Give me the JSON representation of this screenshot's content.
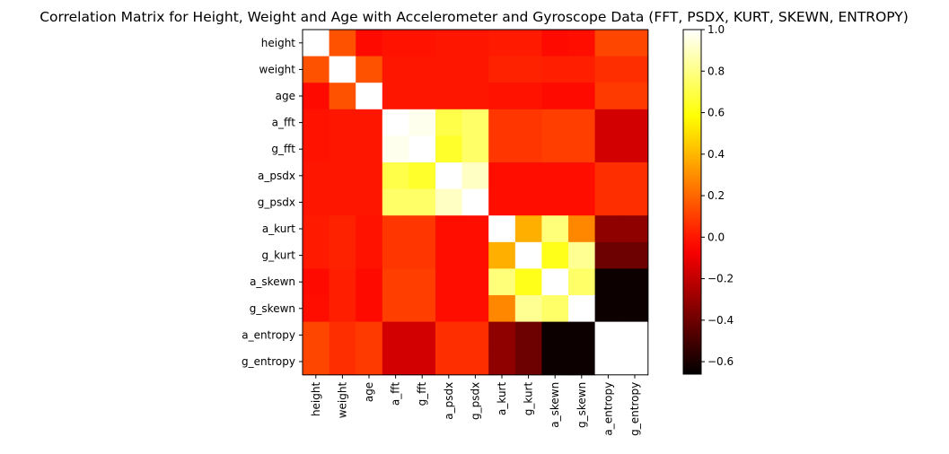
{
  "chart_data": {
    "type": "heatmap",
    "title": "Correlation Matrix for Height, Weight and Age with Accelerometer and Gyroscope Data (FFT, PSDX, KURT, SKEWN, ENTROPY)",
    "xlabel": "",
    "ylabel": "",
    "labels": [
      "height",
      "weight",
      "age",
      "a_fft",
      "g_fft",
      "a_psdx",
      "g_psdx",
      "a_kurt",
      "g_kurt",
      "a_skewn",
      "g_skewn",
      "a_entropy",
      "g_entropy"
    ],
    "values": [
      [
        1.0,
        0.15,
        -0.03,
        -0.01,
        -0.01,
        0.0,
        0.0,
        0.01,
        0.01,
        -0.03,
        -0.02,
        0.12,
        0.12
      ],
      [
        0.15,
        1.0,
        0.15,
        0.0,
        0.0,
        0.0,
        0.0,
        0.03,
        0.03,
        0.02,
        0.02,
        0.06,
        0.06
      ],
      [
        -0.03,
        0.15,
        1.0,
        0.0,
        0.0,
        0.0,
        0.0,
        -0.01,
        -0.01,
        -0.03,
        -0.03,
        0.09,
        0.09
      ],
      [
        -0.01,
        0.0,
        0.0,
        1.0,
        0.97,
        0.7,
        0.75,
        0.08,
        0.08,
        0.1,
        0.1,
        -0.16,
        -0.16
      ],
      [
        -0.01,
        0.0,
        0.0,
        0.97,
        1.0,
        0.65,
        0.75,
        0.08,
        0.08,
        0.1,
        0.1,
        -0.16,
        -0.16
      ],
      [
        0.0,
        0.0,
        0.0,
        0.7,
        0.65,
        1.0,
        0.9,
        -0.02,
        -0.02,
        -0.02,
        -0.02,
        0.06,
        0.06
      ],
      [
        0.0,
        0.0,
        0.0,
        0.75,
        0.75,
        0.9,
        1.0,
        -0.02,
        -0.02,
        -0.02,
        -0.02,
        0.06,
        0.06
      ],
      [
        0.01,
        0.03,
        -0.01,
        0.08,
        0.08,
        -0.02,
        -0.02,
        1.0,
        0.38,
        0.78,
        0.28,
        -0.32,
        -0.32
      ],
      [
        0.01,
        0.03,
        -0.01,
        0.08,
        0.08,
        -0.02,
        -0.02,
        0.38,
        1.0,
        0.62,
        0.82,
        -0.4,
        -0.4
      ],
      [
        -0.03,
        0.02,
        -0.03,
        0.1,
        0.1,
        -0.02,
        -0.02,
        0.78,
        0.62,
        1.0,
        0.75,
        -0.63,
        -0.63
      ],
      [
        -0.02,
        0.02,
        -0.03,
        0.1,
        0.1,
        -0.02,
        -0.02,
        0.28,
        0.82,
        0.75,
        1.0,
        -0.63,
        -0.63
      ],
      [
        0.12,
        0.06,
        0.09,
        -0.16,
        -0.16,
        0.06,
        0.06,
        -0.32,
        -0.4,
        -0.63,
        -0.63,
        1.0,
        1.0
      ],
      [
        0.12,
        0.06,
        0.09,
        -0.16,
        -0.16,
        0.06,
        0.06,
        -0.32,
        -0.4,
        -0.63,
        -0.63,
        1.0,
        1.0
      ]
    ],
    "colormap": "hot",
    "vmin": -0.66,
    "vmax": 1.0,
    "colorbar": {
      "ticks": [
        -0.6,
        -0.4,
        -0.2,
        0.0,
        0.2,
        0.4,
        0.6,
        0.8,
        1.0
      ],
      "tick_labels": [
        "−0.6",
        "−0.4",
        "−0.2",
        "0.0",
        "0.2",
        "0.4",
        "0.6",
        "0.8",
        "1.0"
      ]
    },
    "grid": false,
    "legend": "colorbar-right"
  }
}
